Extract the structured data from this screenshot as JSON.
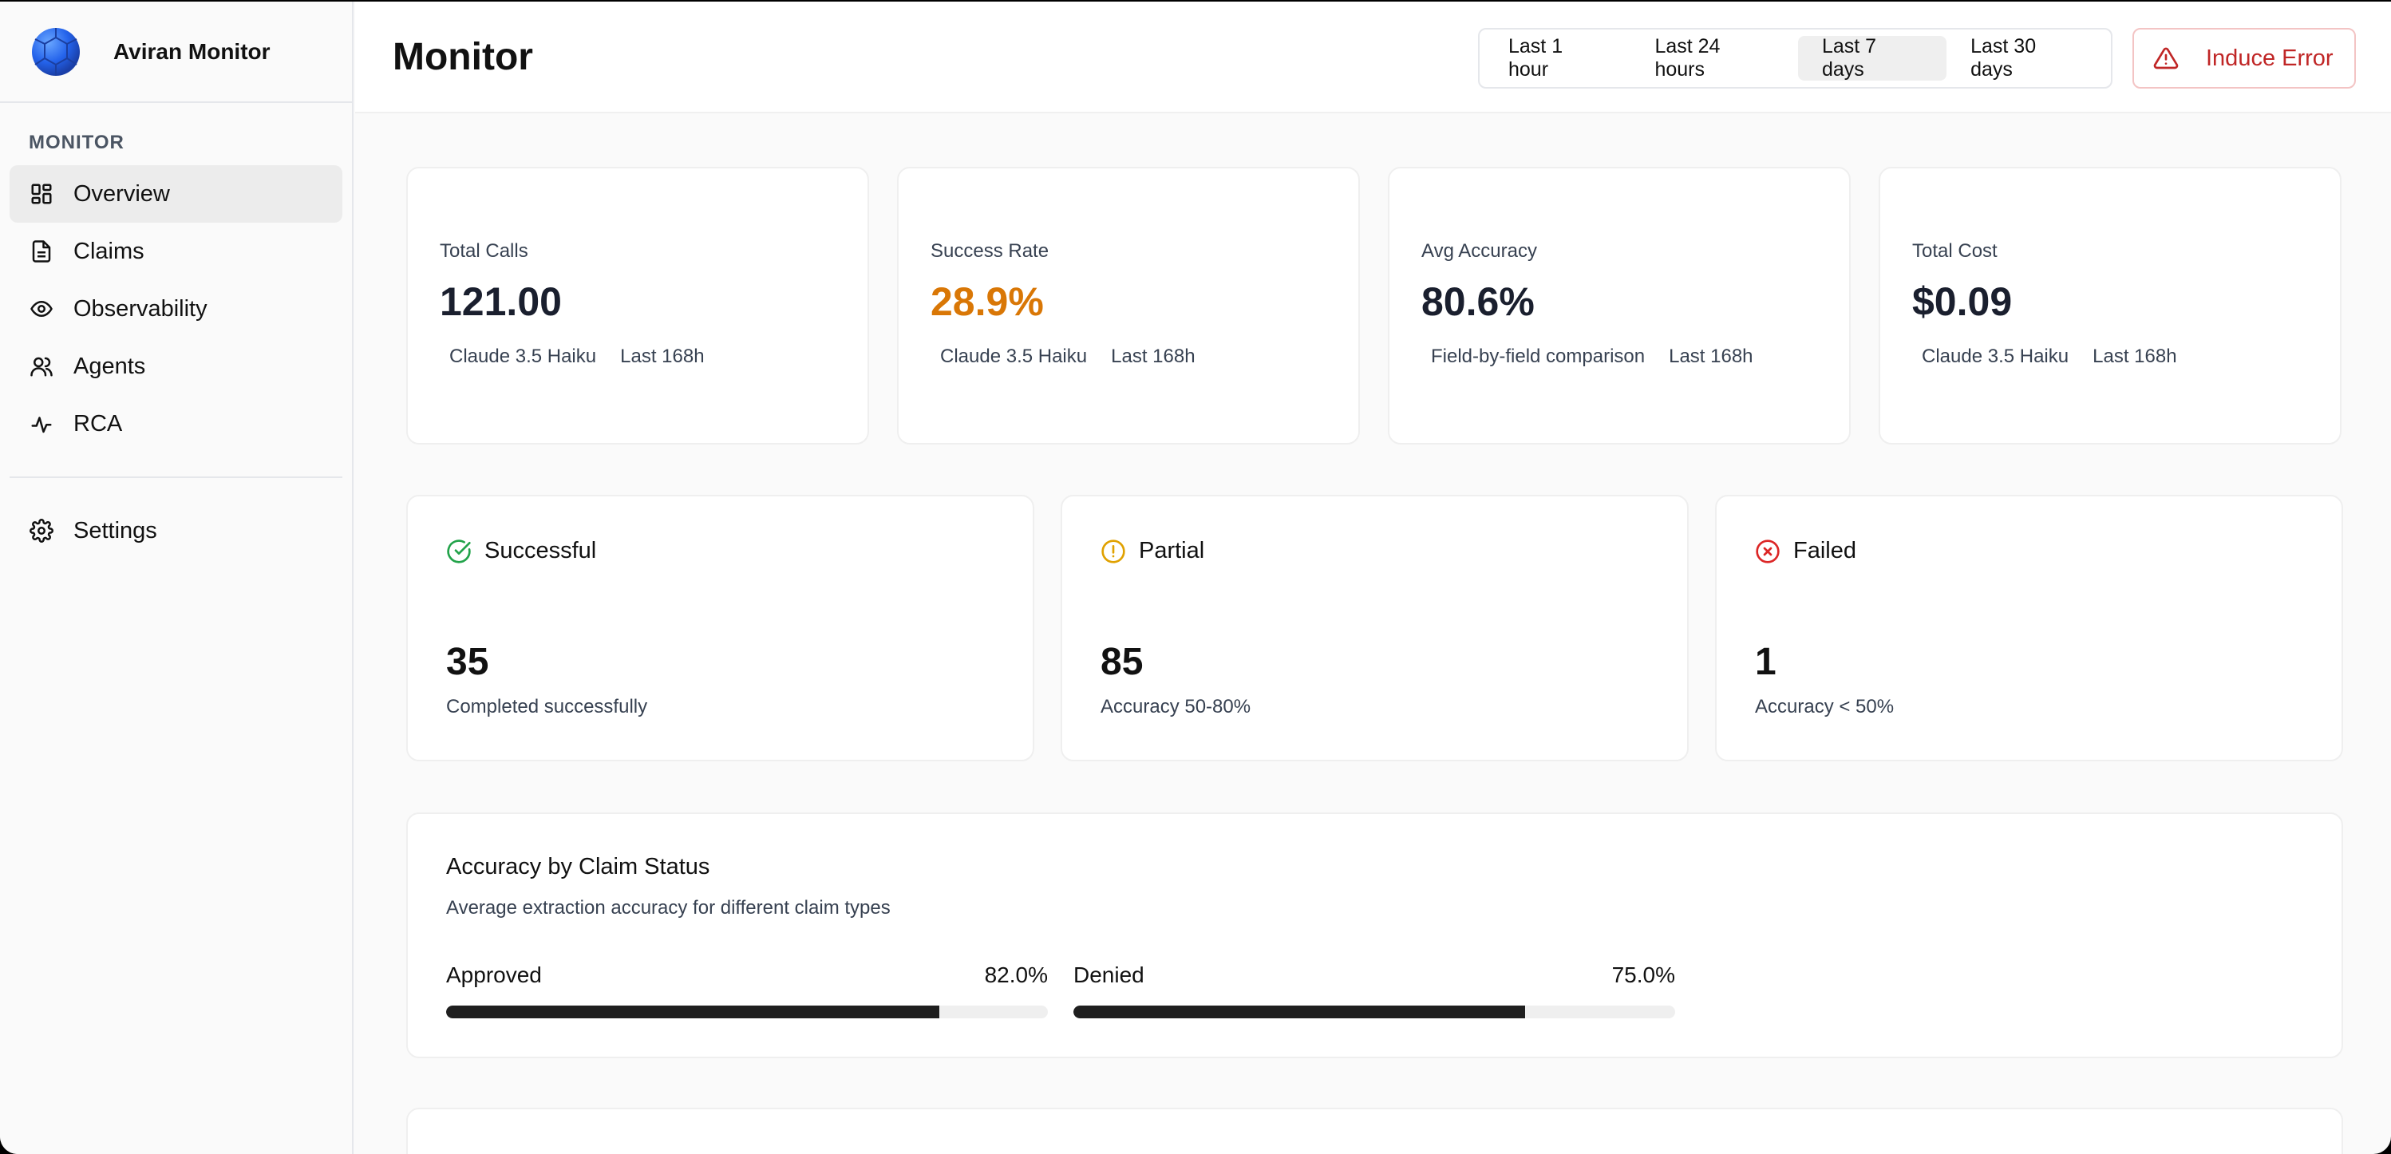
{
  "sidebar": {
    "brand": "Aviran Monitor",
    "section_label": "MONITOR",
    "items": [
      {
        "label": "Overview",
        "icon": "layout-grid-icon",
        "active": true
      },
      {
        "label": "Claims",
        "icon": "document-icon"
      },
      {
        "label": "Observability",
        "icon": "eye-icon"
      },
      {
        "label": "Agents",
        "icon": "users-icon"
      },
      {
        "label": "RCA",
        "icon": "activity-icon"
      }
    ],
    "settings": {
      "label": "Settings",
      "icon": "gear-icon"
    }
  },
  "header": {
    "title": "Monitor",
    "ranges": [
      "Last 1 hour",
      "Last 24 hours",
      "Last 7 days",
      "Last 30 days"
    ],
    "selected_range": "Last 7 days",
    "induce_label": "Induce Error"
  },
  "stats": [
    {
      "label": "Total Calls",
      "value": "121.00",
      "meta1": "Claude 3.5 Haiku",
      "meta2": "Last 168h"
    },
    {
      "label": "Success Rate",
      "value": "28.9%",
      "meta1": "Claude 3.5 Haiku",
      "meta2": "Last 168h"
    },
    {
      "label": "Avg Accuracy",
      "value": "80.6%",
      "meta1": "Field-by-field comparison",
      "meta2": "Last 168h"
    },
    {
      "label": "Total Cost",
      "value": "$0.09",
      "meta1": "Claude 3.5 Haiku",
      "meta2": "Last 168h"
    }
  ],
  "status": [
    {
      "title": "Successful",
      "count": "35",
      "sub": "Completed successfully",
      "color": "#22a34a"
    },
    {
      "title": "Partial",
      "count": "85",
      "sub": "Accuracy 50-80%",
      "color": "#e0a100"
    },
    {
      "title": "Failed",
      "count": "1",
      "sub": "Accuracy < 50%",
      "color": "#dc2626"
    }
  ],
  "accuracy": {
    "title": "Accuracy by Claim Status",
    "description": "Average extraction accuracy for different claim types",
    "bars": [
      {
        "label": "Approved",
        "value_text": "82.0%",
        "value": 82.0
      },
      {
        "label": "Denied",
        "value_text": "75.0%",
        "value": 75.0
      }
    ]
  },
  "colors": {
    "accent_orange": "#d97706",
    "danger": "#c02626",
    "bar": "#1f1f1f"
  }
}
